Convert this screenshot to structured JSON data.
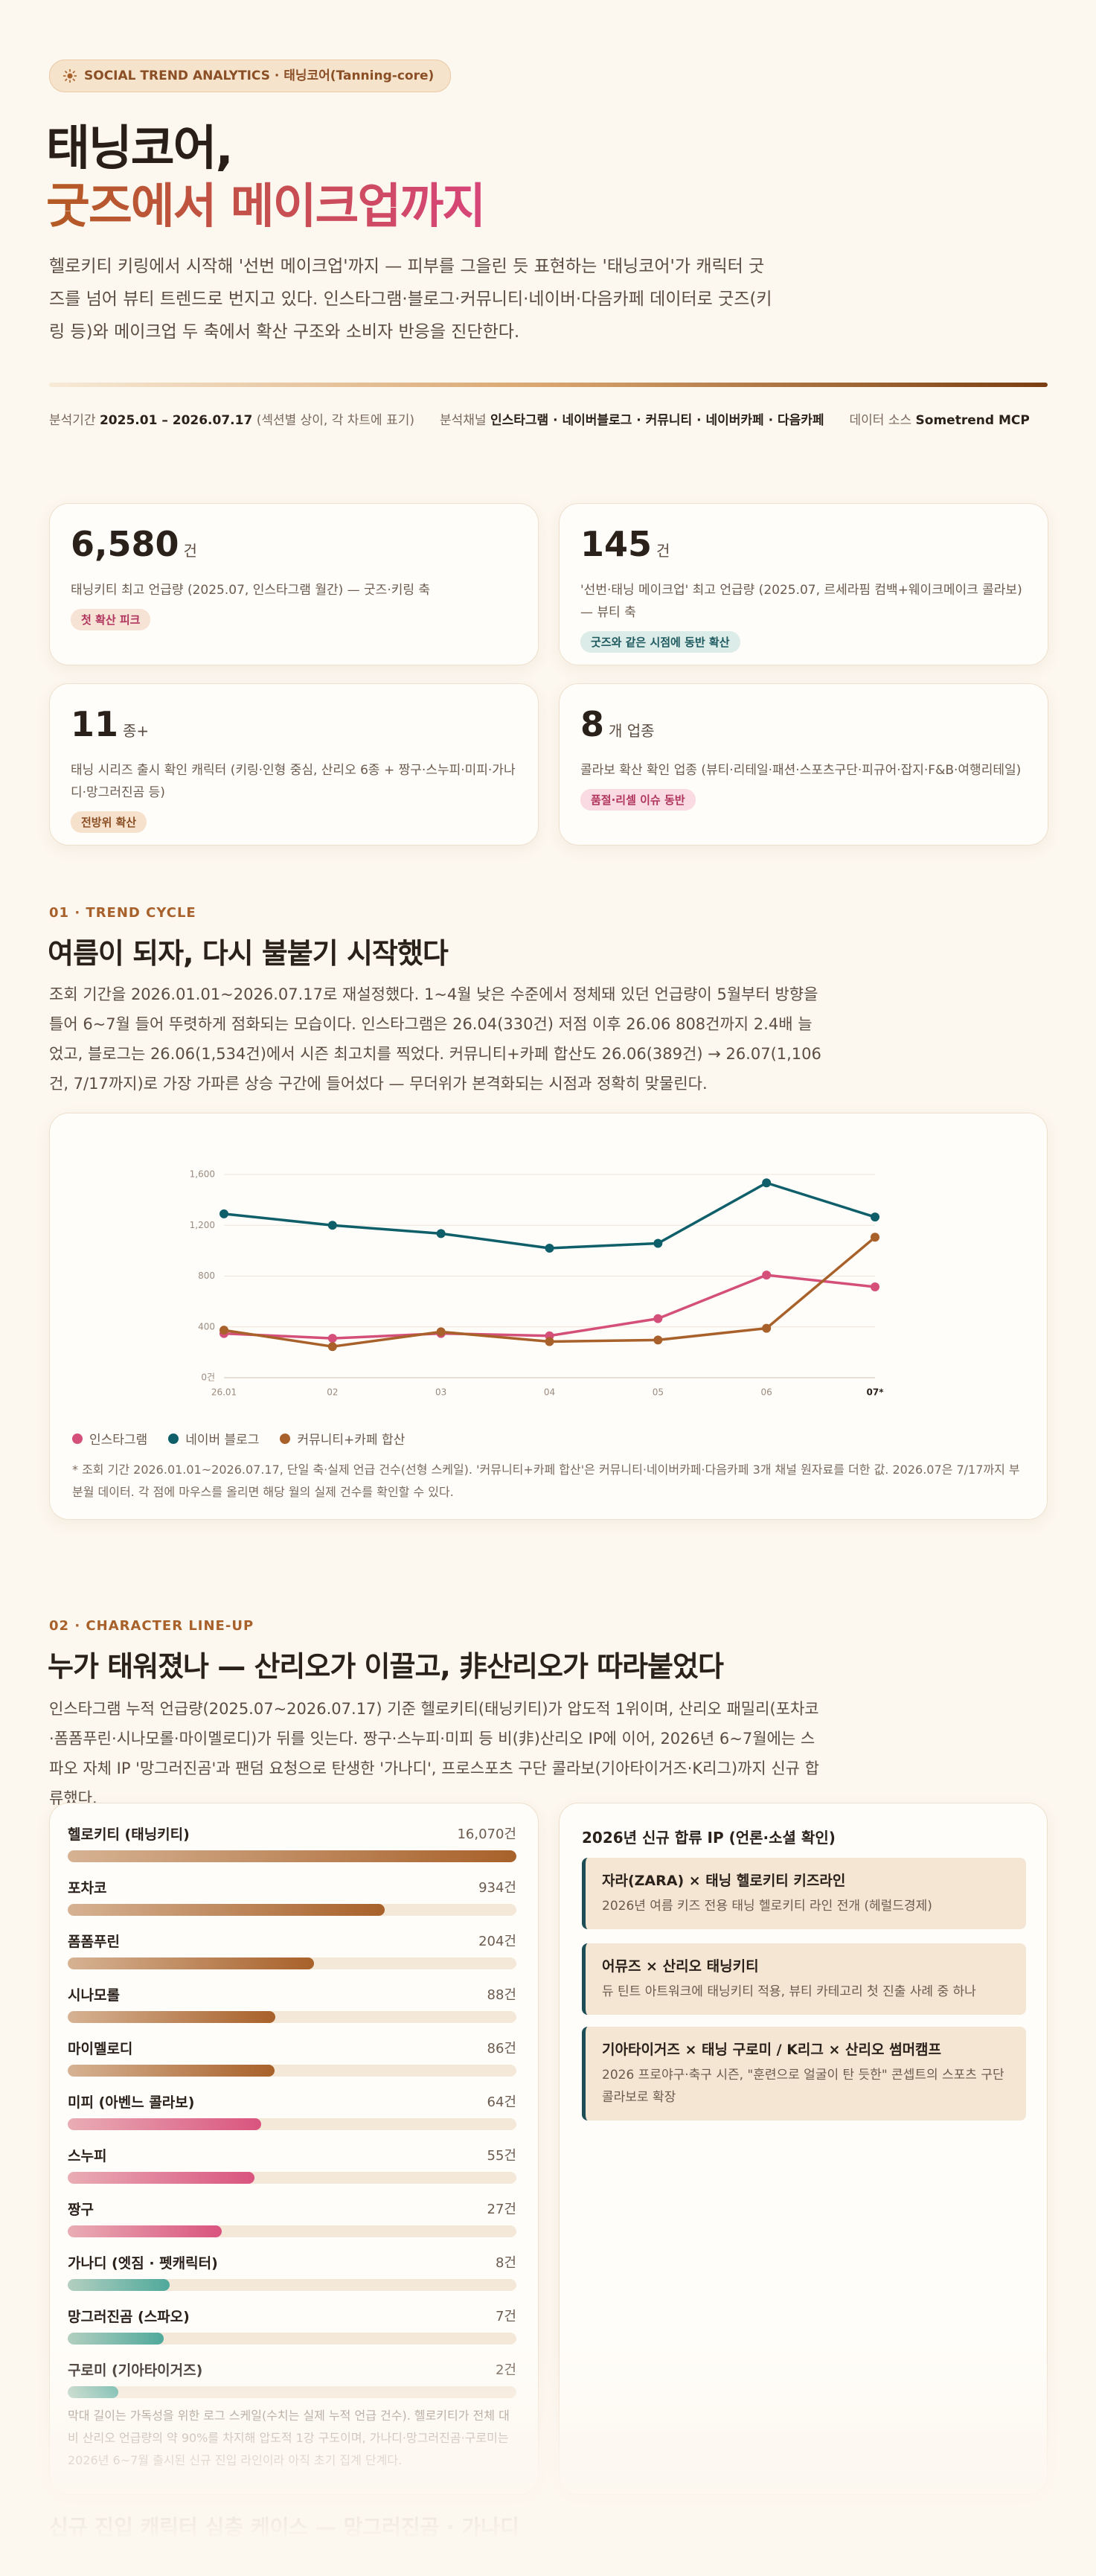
{
  "header": {
    "badge": "SOCIAL TREND ANALYTICS · 태닝코어(Tanning-core)",
    "title_line1": "태닝코어,",
    "title_line2": "굿즈에서 메이크업까지",
    "intro": "헬로키티 키링에서 시작해 '선번 메이크업'까지 — 피부를 그을린 듯 표현하는 '태닝코어'가 캐릭터 굿즈를 넘어 뷰티 트렌드로 번지고 있다. 인스타그램·블로그·커뮤니티·네이버·다음카페 데이터로 굿즈(키링 등)와 메이크업 두 축에서 확산 구조와 소비자 반응을 진단한다.",
    "meta": [
      {
        "label": "분석기간",
        "value": "2025.01 – 2026.07.17",
        "note": "(섹션별 상이, 각 차트에 표기)"
      },
      {
        "label": "분석채널",
        "value": "인스타그램 · 네이버블로그 · 커뮤니티 · 네이버카페 · 다음카페"
      },
      {
        "label": "데이터 소스",
        "value": "Sometrend MCP"
      }
    ]
  },
  "kpis": [
    {
      "number": "6,580",
      "unit": "건",
      "description": "태닝키티 최고 언급량 (2025.07, 인스타그램 월간) — 굿즈·키링 축",
      "tag": "첫 확산 피크"
    },
    {
      "number": "145",
      "unit": "건",
      "description": "'선번·태닝 메이크업' 최고 언급량 (2025.07, 르세라핌 컴백+웨이크메이크 콜라보) — 뷰티 축",
      "tag": "굿즈와 같은 시점에 동반 확산"
    },
    {
      "number": "11",
      "unit": "종+",
      "description": "태닝 시리즈 출시 확인 캐릭터 (키링·인형 중심, 산리오 6종 + 짱구·스누피·미피·가나디·망그러진곰 등)",
      "tag": "전방위 확산"
    },
    {
      "number": "8",
      "unit": "개 업종",
      "description": "콜라보 확산 확인 업종 (뷰티·리테일·패션·스포츠구단·피규어·잡지·F&B·여행리테일)",
      "tag": "품절·리셀 이슈 동반"
    }
  ],
  "section1": {
    "label": "01 · TREND CYCLE",
    "heading": "여름이 되자, 다시 불붙기 시작했다",
    "paragraph": "조회 기간을 2026.01.01~2026.07.17로 재설정했다. 1~4월 낮은 수준에서 정체돼 있던 언급량이 5월부터 방향을 틀어 6~7월 들어 뚜렷하게 점화되는 모습이다. 인스타그램은 26.04(330건) 저점 이후 26.06 808건까지 2.4배 늘었고, 블로그는 26.06(1,534건)에서 시즌 최고치를 찍었다. 커뮤니티+카페 합산도 26.06(389건) → 26.07(1,106건, 7/17까지)로 가장 가파른 상승 구간에 들어섰다 — 무더위가 본격화되는 시점과 정확히 맞물린다."
  },
  "section2": {
    "label": "02 · CHARACTER LINE-UP",
    "heading": "누가 태워졌나 — 산리오가 이끌고, 非산리오가 따라붙었다",
    "paragraph": "인스타그램 누적 언급량(2025.07~2026.07.17) 기준 헬로키티(태닝키티)가 압도적 1위이며, 산리오 패밀리(포차코·폼폼푸린·시나모롤·마이멜로디)가 뒤를 잇는다. 짱구·스누피·미피 등 비(非)산리오 IP에 이어, 2026년 6~7월에는 스파오 자체 IP '망그러진곰'과 팬덤 요청으로 탄생한 '가나디', 프로스포츠 구단 콜라보(기아타이거즈·K리그)까지 신규 합류했다."
  },
  "chart_data": [
    {
      "type": "line",
      "categories": [
        "26.01",
        "02",
        "03",
        "04",
        "05",
        "06",
        "07*"
      ],
      "series": [
        {
          "name": "인스타그램",
          "color": "#d4507a",
          "values": [
            348,
            310,
            348,
            330,
            465,
            808,
            715
          ]
        },
        {
          "name": "네이버 블로그",
          "color": "#0f5f6b",
          "values": [
            1290,
            1200,
            1135,
            1020,
            1058,
            1534,
            1265
          ]
        },
        {
          "name": "커뮤니티+카페 합산",
          "color": "#a8612a",
          "values": [
            374,
            245,
            361,
            284,
            297,
            389,
            1106
          ]
        }
      ],
      "ylim": [
        0,
        1600
      ],
      "yticks": [
        {
          "value": 0,
          "label": "0건"
        },
        400,
        800,
        {
          "value": 1200,
          "label": "1,200"
        },
        {
          "value": 1600,
          "label": "1,600"
        }
      ],
      "grid": true,
      "legend": "bottom-left",
      "note": "* 조회 기간 2026.01.01~2026.07.17, 단일 축·실제 언급 건수(선형 스케일). '커뮤니티+카페 합산'은 커뮤니티·네이버카페·다음카페 3개 채널 원자료를 더한 값. 2026.07은 7/17까지 부분월 데이터. 각 점에 마우스를 올리면 해당 월의 실제 건수를 확인할 수 있다."
    },
    {
      "type": "bar",
      "orientation": "horizontal",
      "log_scale": true,
      "categories": [
        "헬로키티 (태닝키티)",
        "포차코",
        "폼폼푸린",
        "시나모롤",
        "마이멜로디",
        "미피 (아벤느 콜라보)",
        "스누피",
        "짱구",
        "가나디 (엣짐 · 펫캐릭터)",
        "망그러진곰 (스파오)",
        "구로미 (기아타이거즈)"
      ],
      "values": [
        16070,
        934,
        204,
        88,
        86,
        64,
        55,
        27,
        8,
        7,
        2
      ],
      "value_labels": [
        "16,070건",
        "934건",
        "204건",
        "88건",
        "86건",
        "64건",
        "55건",
        "27건",
        "8건",
        "7건",
        "2건"
      ],
      "colors": [
        "#a8612a",
        "#a8612a",
        "#a8612a",
        "#a8612a",
        "#a8612a",
        "#d9547f",
        "#d9547f",
        "#d9547f",
        "#4fa99b",
        "#4fa99b",
        "#4fa99b"
      ],
      "note": "막대 길이는 가독성을 위한 로그 스케일(수치는 실제 누적 언급 건수). 헬로키티가 전체 대비 산리오 언급량의 약 90%를 차지해 압도적 1강 구도이며, 가나디·망그러진곰·구로미는 2026년 6~7월 출시된 신규 진입 라인이라 아직 초기 집계 단계다."
    }
  ],
  "new_ip": {
    "title": "2026년 신규 합류 IP (언론·소셜 확인)",
    "items": [
      {
        "title": "자라(ZARA) × 태닝 헬로키티 키즈라인",
        "description": "2026년 여름 키즈 전용 태닝 헬로키티 라인 전개 (헤럴드경제)"
      },
      {
        "title": "어뮤즈 × 산리오 태닝키티",
        "description": "듀 틴트 아트워크에 태닝키티 적용, 뷰티 카테고리 첫 진출 사례 중 하나"
      },
      {
        "title": "기아타이거즈 × 태닝 구로미 / K리그 × 산리오 썸머캠프",
        "description": "2026 프로야구·축구 시즌, \"훈련으로 얼굴이 탄 듯한\" 콘셉트의 스포츠 구단 콜라보로 확장"
      }
    ]
  },
  "next_section": "신규 진입 캐릭터 심층 케이스 — 망그러진곰 · 가나디"
}
